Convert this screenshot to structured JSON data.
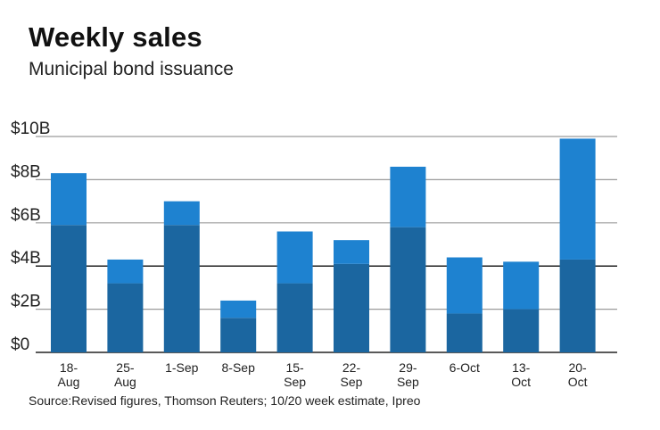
{
  "chart_data": {
    "type": "bar",
    "stacked": true,
    "title": "Weekly sales",
    "subtitle": "Municipal bond issuance",
    "source": "Source:Revised figures, Thomson Reuters; 10/20 week estimate, Ipreo",
    "xlabel": "",
    "ylabel": "",
    "ylim": [
      0,
      10
    ],
    "yticks": [
      {
        "value": 0,
        "label": "$0"
      },
      {
        "value": 2,
        "label": "$2B"
      },
      {
        "value": 4,
        "label": "$4B"
      },
      {
        "value": 6,
        "label": "$6B"
      },
      {
        "value": 8,
        "label": "$8B"
      },
      {
        "value": 10,
        "label": "$10B"
      }
    ],
    "grid": true,
    "legend": "none",
    "categories": [
      [
        "18-",
        "Aug"
      ],
      [
        "25-",
        "Aug"
      ],
      [
        "1-Sep"
      ],
      [
        "8-Sep"
      ],
      [
        "15-",
        "Sep"
      ],
      [
        "22-",
        "Sep"
      ],
      [
        "29-",
        "Sep"
      ],
      [
        "6-Oct"
      ],
      [
        "13-",
        "Oct"
      ],
      [
        "20-",
        "Oct"
      ]
    ],
    "series": [
      {
        "name": "lower",
        "color": "#1b66a0",
        "values": [
          5.9,
          3.2,
          5.9,
          1.6,
          3.2,
          4.1,
          5.8,
          1.8,
          2.0,
          4.3
        ]
      },
      {
        "name": "upper",
        "color": "#1e82d0",
        "values": [
          2.4,
          1.1,
          1.1,
          0.8,
          2.4,
          1.1,
          2.8,
          2.6,
          2.2,
          5.6
        ]
      }
    ],
    "totals": [
      8.3,
      4.3,
      7.0,
      2.4,
      5.6,
      5.2,
      8.6,
      4.4,
      4.2,
      9.9
    ]
  }
}
